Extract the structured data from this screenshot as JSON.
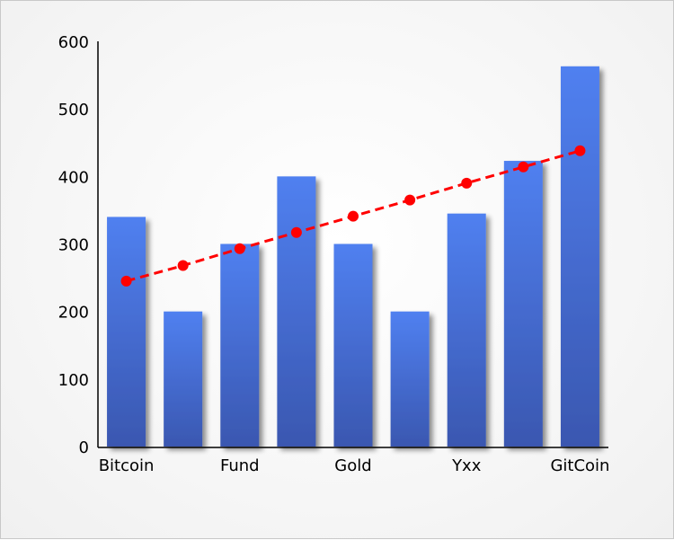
{
  "chart_data": {
    "type": "bar",
    "title": "",
    "xlabel": "",
    "ylabel": "",
    "ylim": [
      0,
      600
    ],
    "yticks": [
      0,
      100,
      200,
      300,
      400,
      500,
      600
    ],
    "grid": false,
    "legend": null,
    "categories": [
      "Bitcoin",
      "",
      "Fund",
      "",
      "Gold",
      "",
      "Yxx",
      "",
      "GitCoin"
    ],
    "series": [
      {
        "name": "bars",
        "type": "bar",
        "color_top": "#5080f0",
        "color_bottom": "#3a57b0",
        "values": [
          340,
          200,
          300,
          400,
          300,
          200,
          345,
          423,
          563
        ]
      },
      {
        "name": "trend",
        "type": "line",
        "style": "dashed",
        "marker": "circle",
        "color": "#ff0000",
        "values": [
          245,
          268,
          293,
          317,
          341,
          365,
          390,
          414,
          438
        ]
      }
    ]
  },
  "axis": {
    "y_labels": [
      "0",
      "100",
      "200",
      "300",
      "400",
      "500",
      "600"
    ],
    "x_labels": [
      "Bitcoin",
      "Fund",
      "Gold",
      "Yxx",
      "GitCoin"
    ]
  }
}
